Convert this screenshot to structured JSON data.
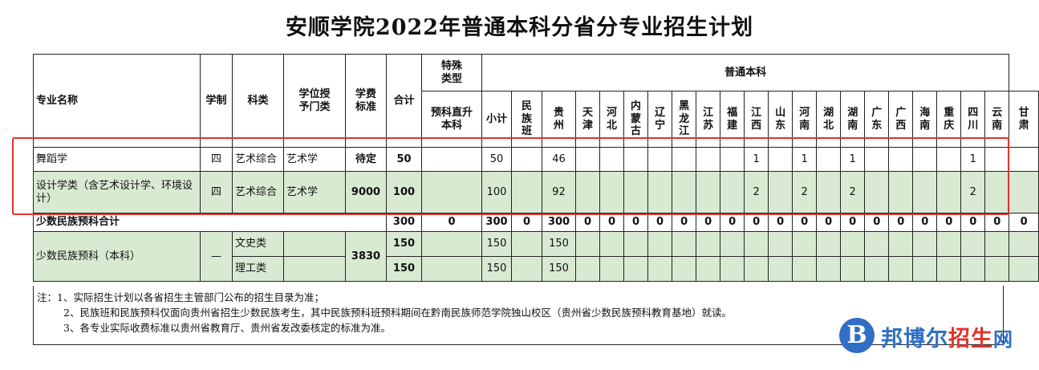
{
  "title": "安顺学院2022年普通本科分省分专业招生计划",
  "headers": {
    "major": "专业名称",
    "duration": "学制",
    "category": "科类",
    "degree": "学位授予门类",
    "fee": "学费标准",
    "total": "合计",
    "special": "特殊类型",
    "special_sub": "预科直升本科",
    "regular": "普通本科",
    "subtotal": "小计",
    "ethnic_class": "民族班",
    "provinces": [
      "贵州",
      "天津",
      "河北",
      "内蒙古",
      "辽宁",
      "黑龙江",
      "江苏",
      "福建",
      "江西",
      "山东",
      "河南",
      "湖北",
      "湖南",
      "广东",
      "广西",
      "海南",
      "重庆",
      "四川",
      "云南",
      "甘肃"
    ]
  },
  "rows": [
    {
      "major": "舞蹈学",
      "duration": "四",
      "category": "艺术综合",
      "degree": "艺术学",
      "fee": "待定",
      "total": "50",
      "special": "",
      "subtotal": "50",
      "ethnic": "",
      "provinces": [
        "46",
        "",
        "",
        "",
        "",
        "",
        "",
        "",
        "1",
        "",
        "1",
        "",
        "1",
        "",
        "",
        "",
        "",
        "1",
        "",
        ""
      ]
    },
    {
      "major": "设计学类（含艺术设计学、环境设计）",
      "duration": "四",
      "category": "艺术综合",
      "degree": "艺术学",
      "fee": "9000",
      "total": "100",
      "special": "",
      "subtotal": "100",
      "ethnic": "",
      "provinces": [
        "92",
        "",
        "",
        "",
        "",
        "",
        "",
        "",
        "2",
        "",
        "2",
        "",
        "2",
        "",
        "",
        "",
        "",
        "2",
        "",
        ""
      ]
    }
  ],
  "minority_total": {
    "label": "少数民族预科合计",
    "total": "300",
    "special": "0",
    "subtotal": "300",
    "ethnic": "0",
    "provinces": [
      "300",
      "0",
      "0",
      "0",
      "0",
      "0",
      "0",
      "0",
      "0",
      "0",
      "0",
      "0",
      "0",
      "0",
      "0",
      "0",
      "0",
      "0",
      "0",
      "0"
    ]
  },
  "minority_rows": {
    "label": "少数民族预科（本科）",
    "duration": "—",
    "fee": "3830",
    "sub": [
      {
        "category": "文史类",
        "total": "150",
        "subtotal": "150",
        "guizhou": "150"
      },
      {
        "category": "理工类",
        "total": "150",
        "subtotal": "150",
        "guizhou": "150"
      }
    ]
  },
  "notes": [
    "注：1、实际招生计划以各省招生主管部门公布的招生目录为准；",
    "2、民族班和民族预科仅面向贵州省招生少数民族考生，其中民族预科班预科期间在黔南民族师范学院独山校区（贵州省少数民族预科教育基地）就读。",
    "3、各专业实际收费标准以贵州省教育厅、贵州省发改委核定的标准为准。"
  ],
  "watermark": {
    "circle": "B",
    "text1": "邦博尔",
    "text2": "招生",
    "text3": "网"
  },
  "colors": {
    "highlight": "#d9ead3",
    "red_box": "#e0342c",
    "watermark_blue": "#2f6fc4"
  }
}
